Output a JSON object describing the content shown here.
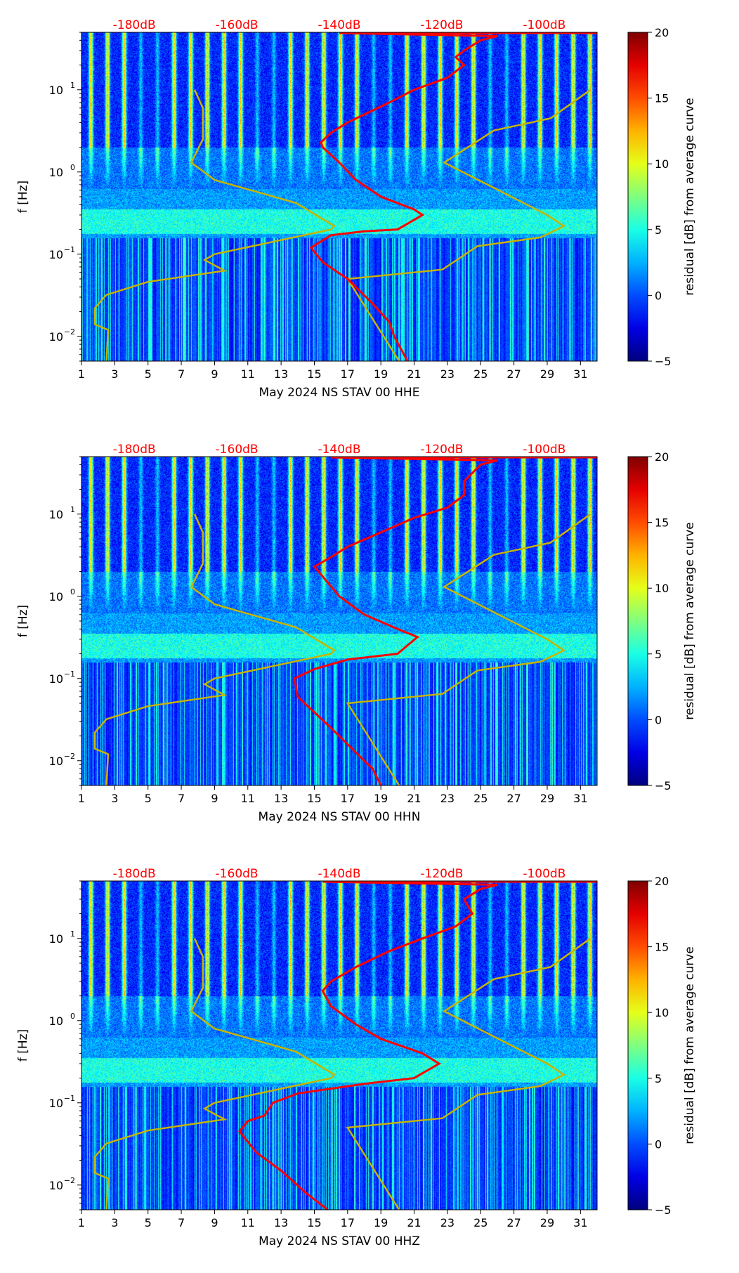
{
  "chart_data": [
    {
      "type": "heatmap",
      "xlabel": "May 2024 NS STAV 00 HHE",
      "ylabel": "f [Hz]",
      "xlim": [
        1,
        32
      ],
      "ylim": [
        0.005,
        50
      ],
      "yscale": "log",
      "xticks": [
        "1",
        "3",
        "5",
        "7",
        "9",
        "11",
        "13",
        "15",
        "17",
        "19",
        "21",
        "23",
        "25",
        "27",
        "29",
        "31"
      ],
      "yticks": [
        {
          "value": 0.01,
          "base": "10",
          "exp": "−2"
        },
        {
          "value": 0.1,
          "base": "10",
          "exp": "−1"
        },
        {
          "value": 1,
          "base": "10",
          "exp": "0"
        },
        {
          "value": 10,
          "base": "10",
          "exp": "1"
        }
      ],
      "top_axis": {
        "labels": [
          "-180dB",
          "-160dB",
          "-140dB",
          "-120dB",
          "-100dB"
        ],
        "values": [
          -180,
          -160,
          -140,
          -120,
          -100
        ],
        "range": [
          -190.3,
          -89.7
        ],
        "color": "#ff0000"
      },
      "colorbar": {
        "label": "residual [dB] from average curve",
        "range": [
          -5,
          20
        ],
        "ticks": [
          "−5",
          "0",
          "5",
          "10",
          "15",
          "20"
        ],
        "colormap": "jet"
      },
      "series": [
        {
          "name": "noise model low",
          "color": "#c8b400",
          "points": [
            [
              2.5,
              0.005
            ],
            [
              2.6,
              0.012
            ],
            [
              1.8,
              0.014
            ],
            [
              1.8,
              0.022
            ],
            [
              2.5,
              0.032
            ],
            [
              5,
              0.046
            ],
            [
              9.6,
              0.063
            ],
            [
              8.4,
              0.085
            ],
            [
              9,
              0.1
            ],
            [
              16,
              0.2
            ],
            [
              16.2,
              0.22
            ],
            [
              13.9,
              0.42
            ],
            [
              9,
              0.8
            ],
            [
              7.6,
              1.3
            ],
            [
              8.3,
              2.5
            ],
            [
              8.3,
              6
            ],
            [
              7.8,
              10
            ]
          ]
        },
        {
          "name": "noise model high",
          "color": "#c8b400",
          "points": [
            [
              20.1,
              0.005
            ],
            [
              17,
              0.05
            ],
            [
              22.7,
              0.065
            ],
            [
              24.8,
              0.125
            ],
            [
              28.6,
              0.16
            ],
            [
              30,
              0.22
            ],
            [
              29,
              0.3
            ],
            [
              22.8,
              1.3
            ],
            [
              25.8,
              3.2
            ],
            [
              29.2,
              4.5
            ],
            [
              31.6,
              10
            ]
          ]
        },
        {
          "name": "average curve",
          "color": "#ff0000",
          "points": [
            [
              20.6,
              0.005
            ],
            [
              19.8,
              0.01
            ],
            [
              19.5,
              0.015
            ],
            [
              18.5,
              0.025
            ],
            [
              17,
              0.05
            ],
            [
              15.5,
              0.08
            ],
            [
              14.8,
              0.12
            ],
            [
              16,
              0.17
            ],
            [
              18,
              0.19
            ],
            [
              20,
              0.2
            ],
            [
              21.5,
              0.3
            ],
            [
              21,
              0.35
            ],
            [
              19,
              0.5
            ],
            [
              17.5,
              0.8
            ],
            [
              16.5,
              1.3
            ],
            [
              15.5,
              2
            ],
            [
              15.4,
              2.3
            ],
            [
              16,
              3
            ],
            [
              17,
              4
            ],
            [
              18,
              5
            ],
            [
              19.5,
              7
            ],
            [
              21,
              10
            ],
            [
              23,
              14
            ],
            [
              24,
              20
            ],
            [
              23.5,
              25
            ],
            [
              24,
              30
            ],
            [
              25,
              40
            ],
            [
              26,
              45
            ],
            [
              16.5,
              49
            ],
            [
              32,
              49
            ]
          ]
        }
      ]
    },
    {
      "type": "heatmap",
      "xlabel": "May 2024 NS STAV 00 HHN",
      "ylabel": "f [Hz]",
      "xlim": [
        1,
        32
      ],
      "ylim": [
        0.005,
        50
      ],
      "yscale": "log",
      "xticks": [
        "1",
        "3",
        "5",
        "7",
        "9",
        "11",
        "13",
        "15",
        "17",
        "19",
        "21",
        "23",
        "25",
        "27",
        "29",
        "31"
      ],
      "yticks": [
        {
          "value": 0.01,
          "base": "10",
          "exp": "−2"
        },
        {
          "value": 0.1,
          "base": "10",
          "exp": "−1"
        },
        {
          "value": 1,
          "base": "10",
          "exp": "0"
        },
        {
          "value": 10,
          "base": "10",
          "exp": "1"
        }
      ],
      "top_axis": {
        "labels": [
          "-180dB",
          "-160dB",
          "-140dB",
          "-120dB",
          "-100dB"
        ],
        "values": [
          -180,
          -160,
          -140,
          -120,
          -100
        ],
        "range": [
          -190.3,
          -89.7
        ],
        "color": "#ff0000"
      },
      "colorbar": {
        "label": "residual [dB] from average curve",
        "range": [
          -5,
          20
        ],
        "ticks": [
          "−5",
          "0",
          "5",
          "10",
          "15",
          "20"
        ],
        "colormap": "jet"
      },
      "series": [
        {
          "name": "noise model low",
          "color": "#c8b400",
          "points": [
            [
              2.5,
              0.005
            ],
            [
              2.6,
              0.012
            ],
            [
              1.8,
              0.014
            ],
            [
              1.8,
              0.022
            ],
            [
              2.5,
              0.032
            ],
            [
              5,
              0.046
            ],
            [
              9.6,
              0.063
            ],
            [
              8.4,
              0.085
            ],
            [
              9,
              0.1
            ],
            [
              16,
              0.2
            ],
            [
              16.2,
              0.22
            ],
            [
              13.9,
              0.42
            ],
            [
              9,
              0.8
            ],
            [
              7.6,
              1.3
            ],
            [
              8.3,
              2.5
            ],
            [
              8.3,
              6
            ],
            [
              7.8,
              10
            ]
          ]
        },
        {
          "name": "noise model high",
          "color": "#c8b400",
          "points": [
            [
              20.1,
              0.005
            ],
            [
              17,
              0.05
            ],
            [
              22.7,
              0.065
            ],
            [
              24.8,
              0.125
            ],
            [
              28.6,
              0.16
            ],
            [
              30,
              0.22
            ],
            [
              29,
              0.3
            ],
            [
              22.8,
              1.3
            ],
            [
              25.8,
              3.2
            ],
            [
              29.2,
              4.5
            ],
            [
              31.6,
              10
            ]
          ]
        },
        {
          "name": "average curve",
          "color": "#ff0000",
          "points": [
            [
              19,
              0.005
            ],
            [
              18.5,
              0.008
            ],
            [
              18,
              0.01
            ],
            [
              16,
              0.025
            ],
            [
              14,
              0.06
            ],
            [
              13.8,
              0.1
            ],
            [
              15,
              0.13
            ],
            [
              17,
              0.17
            ],
            [
              20,
              0.2
            ],
            [
              21.2,
              0.32
            ],
            [
              20,
              0.4
            ],
            [
              18,
              0.6
            ],
            [
              16.5,
              1
            ],
            [
              15,
              2.3
            ],
            [
              16,
              3
            ],
            [
              17,
              4
            ],
            [
              19,
              6
            ],
            [
              21,
              9
            ],
            [
              23,
              12
            ],
            [
              24,
              17
            ],
            [
              24,
              25
            ],
            [
              25,
              40
            ],
            [
              26,
              45
            ],
            [
              16,
              49
            ],
            [
              32,
              49
            ]
          ]
        }
      ]
    },
    {
      "type": "heatmap",
      "xlabel": "May 2024 NS STAV 00 HHZ",
      "ylabel": "f [Hz]",
      "xlim": [
        1,
        32
      ],
      "ylim": [
        0.005,
        50
      ],
      "yscale": "log",
      "xticks": [
        "1",
        "3",
        "5",
        "7",
        "9",
        "11",
        "13",
        "15",
        "17",
        "19",
        "21",
        "23",
        "25",
        "27",
        "29",
        "31"
      ],
      "yticks": [
        {
          "value": 0.01,
          "base": "10",
          "exp": "−2"
        },
        {
          "value": 0.1,
          "base": "10",
          "exp": "−1"
        },
        {
          "value": 1,
          "base": "10",
          "exp": "0"
        },
        {
          "value": 10,
          "base": "10",
          "exp": "1"
        }
      ],
      "top_axis": {
        "labels": [
          "-180dB",
          "-160dB",
          "-140dB",
          "-120dB",
          "-100dB"
        ],
        "values": [
          -180,
          -160,
          -140,
          -120,
          -100
        ],
        "range": [
          -190.3,
          -89.7
        ],
        "color": "#ff0000"
      },
      "colorbar": {
        "label": "residual [dB] from average curve",
        "range": [
          -5,
          20
        ],
        "ticks": [
          "−5",
          "0",
          "5",
          "10",
          "15",
          "20"
        ],
        "colormap": "jet"
      },
      "series": [
        {
          "name": "noise model low",
          "color": "#c8b400",
          "points": [
            [
              2.5,
              0.005
            ],
            [
              2.6,
              0.012
            ],
            [
              1.8,
              0.014
            ],
            [
              1.8,
              0.022
            ],
            [
              2.5,
              0.032
            ],
            [
              5,
              0.046
            ],
            [
              9.6,
              0.063
            ],
            [
              8.4,
              0.085
            ],
            [
              9,
              0.1
            ],
            [
              16,
              0.2
            ],
            [
              16.2,
              0.22
            ],
            [
              13.9,
              0.42
            ],
            [
              9,
              0.8
            ],
            [
              7.6,
              1.3
            ],
            [
              8.3,
              2.5
            ],
            [
              8.3,
              6
            ],
            [
              7.8,
              10
            ]
          ]
        },
        {
          "name": "noise model high",
          "color": "#c8b400",
          "points": [
            [
              20.1,
              0.005
            ],
            [
              17,
              0.05
            ],
            [
              22.7,
              0.065
            ],
            [
              24.8,
              0.125
            ],
            [
              28.6,
              0.16
            ],
            [
              30,
              0.22
            ],
            [
              29,
              0.3
            ],
            [
              22.8,
              1.3
            ],
            [
              25.8,
              3.2
            ],
            [
              29.2,
              4.5
            ],
            [
              31.6,
              10
            ]
          ]
        },
        {
          "name": "average curve",
          "color": "#ff0000",
          "points": [
            [
              15.8,
              0.005
            ],
            [
              14.5,
              0.008
            ],
            [
              13,
              0.015
            ],
            [
              11.5,
              0.025
            ],
            [
              10.5,
              0.045
            ],
            [
              11,
              0.06
            ],
            [
              12,
              0.07
            ],
            [
              12.5,
              0.1
            ],
            [
              14,
              0.13
            ],
            [
              18,
              0.17
            ],
            [
              21,
              0.2
            ],
            [
              22.5,
              0.3
            ],
            [
              21.5,
              0.4
            ],
            [
              19,
              0.6
            ],
            [
              17.5,
              0.9
            ],
            [
              16,
              1.5
            ],
            [
              15.5,
              2.3
            ],
            [
              16,
              3
            ],
            [
              17.5,
              4.5
            ],
            [
              19.5,
              7
            ],
            [
              21.5,
              10
            ],
            [
              23.5,
              14
            ],
            [
              24.5,
              20
            ],
            [
              24,
              30
            ],
            [
              25,
              40
            ],
            [
              26,
              45
            ],
            [
              15.5,
              49
            ],
            [
              32,
              49
            ]
          ]
        }
      ]
    }
  ]
}
